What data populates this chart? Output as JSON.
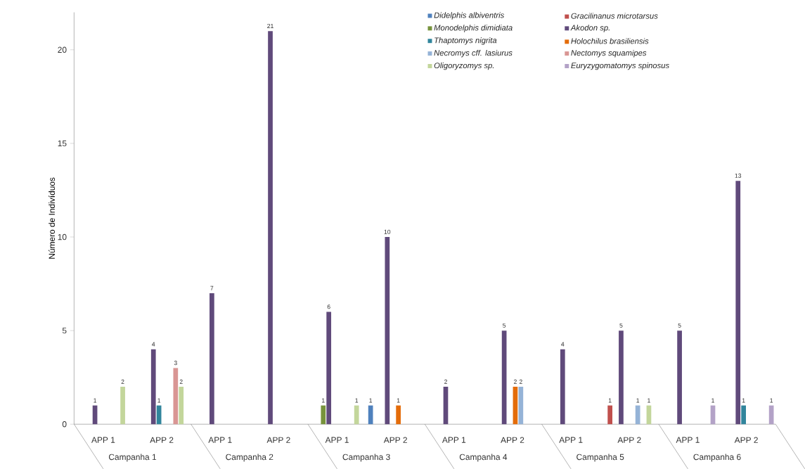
{
  "chart_data": {
    "type": "bar",
    "ylabel": "Número de Indivíduos",
    "categories": [
      "APP 1",
      "APP 2",
      "APP 1",
      "APP 2",
      "APP 1",
      "APP 2",
      "APP 1",
      "APP 2",
      "APP 1",
      "APP 2",
      "APP 1",
      "APP 2"
    ],
    "annotations": [
      "Campanha 1",
      "Campanha 2",
      "Campanha 3",
      "Campanha 4",
      "Campanha 5",
      "Campanha 6"
    ],
    "series": [
      {
        "name": "Didelphis albiventris",
        "color": "#4f81bd",
        "values": [
          null,
          null,
          null,
          null,
          null,
          1,
          null,
          null,
          null,
          null,
          null,
          null
        ],
        "value_labels": [
          null,
          null,
          null,
          null,
          null,
          "1",
          null,
          null,
          null,
          null,
          null,
          null
        ]
      },
      {
        "name": "Gracilinanus microtarsus",
        "color": "#c0504d",
        "values": [
          null,
          null,
          null,
          null,
          null,
          null,
          null,
          null,
          null,
          1,
          null,
          null
        ],
        "value_labels": [
          null,
          null,
          null,
          null,
          null,
          null,
          null,
          null,
          null,
          "1",
          null,
          null
        ]
      },
      {
        "name": "Monodelphis dimidiata",
        "color": "#77933c",
        "values": [
          null,
          null,
          null,
          null,
          1,
          null,
          null,
          null,
          null,
          null,
          null,
          null
        ],
        "value_labels": [
          null,
          null,
          null,
          null,
          "1",
          null,
          null,
          null,
          null,
          null,
          null,
          null
        ]
      },
      {
        "name": "Akodon sp.",
        "color": "#604a7b",
        "values": [
          1,
          4,
          7,
          21,
          6,
          10,
          2,
          5,
          4,
          5,
          5,
          13
        ],
        "value_labels": [
          "1",
          "4",
          "7",
          "21",
          "6",
          "10",
          "2",
          "5",
          "4",
          "5",
          "5",
          "13"
        ]
      },
      {
        "name": "Thaptomys nigrita",
        "color": "#31859c",
        "values": [
          null,
          1,
          null,
          null,
          null,
          null,
          null,
          null,
          null,
          null,
          null,
          1
        ],
        "value_labels": [
          null,
          "1",
          null,
          null,
          null,
          null,
          null,
          null,
          null,
          null,
          null,
          "1"
        ]
      },
      {
        "name": "Holochilus brasiliensis",
        "color": "#e46c0a",
        "values": [
          null,
          null,
          null,
          null,
          null,
          1,
          null,
          2,
          null,
          null,
          null,
          null
        ],
        "value_labels": [
          null,
          null,
          null,
          null,
          null,
          "1",
          null,
          "2",
          null,
          null,
          null,
          null
        ]
      },
      {
        "name": "Necromys cff. lasiurus",
        "color": "#95b3d7",
        "values": [
          null,
          null,
          null,
          null,
          null,
          null,
          null,
          2,
          null,
          1,
          null,
          null
        ],
        "value_labels": [
          null,
          null,
          null,
          null,
          null,
          null,
          null,
          "2",
          null,
          "1",
          null,
          null
        ]
      },
      {
        "name": "Nectomys squamipes",
        "color": "#d99694",
        "values": [
          null,
          3,
          null,
          null,
          null,
          null,
          null,
          null,
          null,
          null,
          null,
          null
        ],
        "value_labels": [
          null,
          "3",
          null,
          null,
          null,
          null,
          null,
          null,
          null,
          null,
          null,
          null
        ]
      },
      {
        "name": "Oligoryzomys sp.",
        "color": "#c3d69b",
        "values": [
          2,
          2,
          null,
          null,
          1,
          null,
          null,
          null,
          null,
          1,
          null,
          null
        ],
        "value_labels": [
          "2",
          "2",
          null,
          null,
          "1",
          null,
          null,
          null,
          null,
          "1",
          null,
          null
        ]
      },
      {
        "name": "Euryzygomatomys spinosus",
        "color": "#b3a2c7",
        "values": [
          null,
          null,
          null,
          null,
          null,
          null,
          null,
          null,
          null,
          null,
          1,
          1
        ],
        "value_labels": [
          null,
          null,
          null,
          null,
          null,
          null,
          null,
          null,
          null,
          null,
          "1",
          "1"
        ]
      }
    ],
    "ylim": [
      0,
      22
    ],
    "yticks": [
      0,
      5,
      10,
      15,
      20
    ],
    "grid": false,
    "legend": "top right"
  }
}
